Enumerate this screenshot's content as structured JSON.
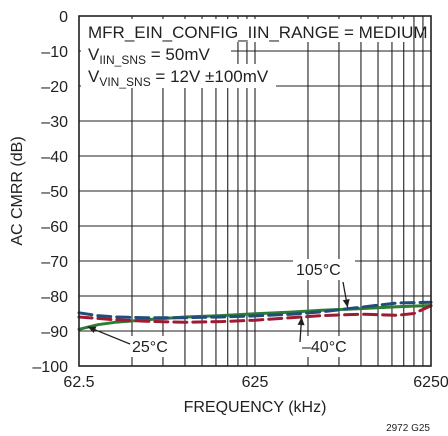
{
  "chart_data": {
    "type": "line",
    "xlabel": "FREQUENCY (kHz)",
    "ylabel": "AC CMRR (dB)",
    "x_scale": "log",
    "xlim": [
      62.5,
      6250
    ],
    "ylim": [
      -100,
      0
    ],
    "x_ticks": [
      "62.5",
      "625",
      "6250"
    ],
    "y_ticks": [
      "0",
      "–10",
      "–20",
      "–30",
      "–40",
      "–50",
      "–60",
      "–70",
      "–80",
      "–90",
      "–100"
    ],
    "grid": true,
    "annotation": {
      "line1": "MFR_EIN_CONFIG_IIN_RANGE = MEDIUM",
      "line2_main": "V",
      "line2_sub": "IIN_SNS",
      "line2_rest": " = 50mV",
      "line3_main": "V",
      "line3_sub": "VIN_SNS",
      "line3_rest": " = 12V ±100mV"
    },
    "series": [
      {
        "name": "25°C",
        "color": "#2e7d32",
        "dash": "solid",
        "x": [
          62.5,
          80,
          100,
          150,
          250,
          400,
          625,
          1000,
          1500,
          2500,
          4000,
          6250
        ],
        "y": [
          -89.5,
          -88.2,
          -87.5,
          -86.8,
          -86.0,
          -85.6,
          -85.1,
          -84.6,
          -84.1,
          -83.6,
          -83.1,
          -82.7
        ]
      },
      {
        "name": "105°C",
        "color": "#1f4e79",
        "dash": "dashed",
        "x": [
          62.5,
          80,
          100,
          150,
          250,
          400,
          625,
          1000,
          1500,
          2500,
          4000,
          6250
        ],
        "y": [
          -84.8,
          -85.6,
          -86.0,
          -86.2,
          -86.2,
          -86.0,
          -85.7,
          -85.2,
          -84.5,
          -83.2,
          -82.0,
          -81.8
        ]
      },
      {
        "name": "–40°C",
        "color": "#9e1b32",
        "dash": "dashed",
        "x": [
          62.5,
          80,
          100,
          150,
          250,
          400,
          625,
          1000,
          1500,
          2500,
          4000,
          5000,
          6250
        ],
        "y": [
          -86.0,
          -86.4,
          -86.8,
          -87.2,
          -87.5,
          -87.3,
          -86.9,
          -86.2,
          -85.6,
          -85.2,
          -85.5,
          -85.0,
          -82.8
        ]
      }
    ],
    "labels": [
      {
        "text": "105°C",
        "series": "105°C",
        "at_x": 2100,
        "at_y": -83.3
      },
      {
        "text": "25°C",
        "series": "25°C",
        "at_x": 70,
        "at_y": -88.8
      },
      {
        "text": "–40°C",
        "series": "–40°C",
        "at_x": 1150,
        "at_y": -86.0
      }
    ],
    "figure_id": "2972 G25"
  }
}
